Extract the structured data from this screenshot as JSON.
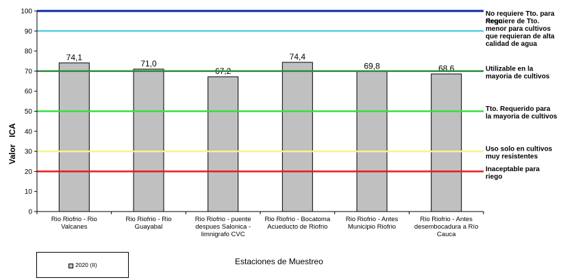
{
  "chart_data": {
    "type": "bar",
    "ylabel": "Valor   ICA",
    "xlabel": "Estaciones de Muestreo",
    "ylim": [
      0,
      100
    ],
    "yticks": [
      0,
      10,
      20,
      30,
      40,
      50,
      60,
      70,
      80,
      90,
      100
    ],
    "categories": [
      [
        "Rio Riofrio - Rio",
        "Valcanes"
      ],
      [
        "Rio Riofrio - Rio",
        "Guayabal"
      ],
      [
        "Rio Riofrio - puente",
        "despues Salonica -",
        "limnigrafo CVC"
      ],
      [
        "Rio Riofrio - Bocatoma",
        "Acueducto de Riofrio"
      ],
      [
        "Rio Riofrio - Antes",
        "Municipio Riofrio"
      ],
      [
        "Rio Riofrio - Antes",
        "desembocadura a Río",
        "Cauca"
      ]
    ],
    "series": [
      {
        "name": "2020 (II)",
        "color": "#c0c0c0",
        "values": [
          74.1,
          71.0,
          67.2,
          74.4,
          69.8,
          68.6
        ],
        "labels": [
          "74,1",
          "71,0",
          "67,2",
          "74,4",
          "69,8",
          "68,6"
        ]
      }
    ],
    "legend": "bottom-left",
    "grid": false,
    "reference_lines": [
      {
        "value": 100,
        "color": "#0a2a9e",
        "label": [
          "No requiere Tto. para",
          "riego"
        ]
      },
      {
        "value": 90,
        "color": "#55d0e8",
        "label": [
          "Requiere de Tto.",
          "menor para cultivos",
          "que requieran de alta",
          "calidad de agua"
        ]
      },
      {
        "value": 70,
        "color": "#2a8a3a",
        "label": [
          "Utilizable  en la",
          "mayoria  de cultivos"
        ]
      },
      {
        "value": 50,
        "color": "#33e040",
        "label": [
          "Tto. Requerido para",
          "la mayoria de cultivos"
        ]
      },
      {
        "value": 30,
        "color": "#f4f48c",
        "label": [
          "Uso solo en cultivos",
          "muy resistentes"
        ]
      },
      {
        "value": 20,
        "color": "#e81a1a",
        "label": [
          "Inaceptable para",
          "riego"
        ]
      }
    ]
  }
}
